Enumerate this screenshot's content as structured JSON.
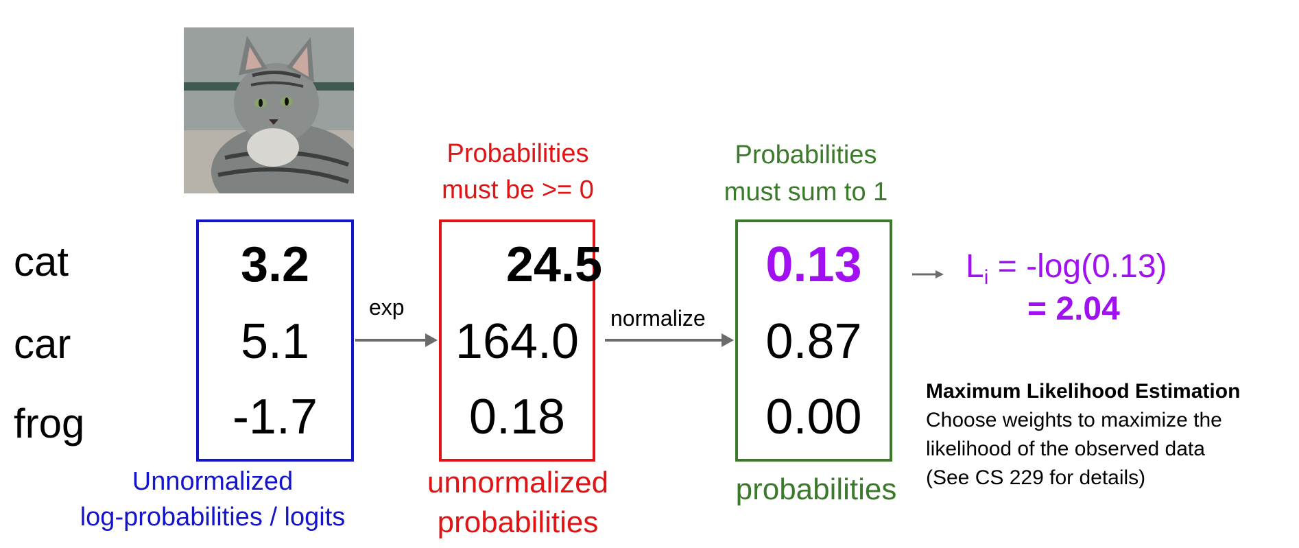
{
  "classes": [
    "cat",
    "car",
    "frog"
  ],
  "logits": [
    "3.2",
    "5.1",
    "-1.7"
  ],
  "unnormalized": [
    "24.5",
    "164.0",
    "0.18"
  ],
  "probabilities": [
    "0.13",
    "0.87",
    "0.00"
  ],
  "captions": {
    "logits_line1": "Unnormalized",
    "logits_line2": "log-probabilities / logits",
    "unnorm_line1": "unnormalized",
    "unnorm_line2": "probabilities",
    "prob": "probabilities",
    "constraint_nonneg_line1": "Probabilities",
    "constraint_nonneg_line2": "must be >= 0",
    "constraint_sum_line1": "Probabilities",
    "constraint_sum_line2": "must sum to 1"
  },
  "arrows": {
    "exp": "exp",
    "normalize": "normalize"
  },
  "loss": {
    "symbol": "L",
    "subscript": "i",
    "expression": " = -log(0.13)",
    "value": "= 2.04"
  },
  "mle": {
    "title": "Maximum Likelihood Estimation",
    "line1": "Choose weights to maximize the",
    "line2": "likelihood of the observed data",
    "line3": "(See CS 229 for details)"
  },
  "colors": {
    "logits": "#1414c8",
    "unnormalized": "#e01414",
    "probabilities": "#3b7a2a",
    "loss": "#a010f0",
    "arrow": "#6b6b6b"
  }
}
